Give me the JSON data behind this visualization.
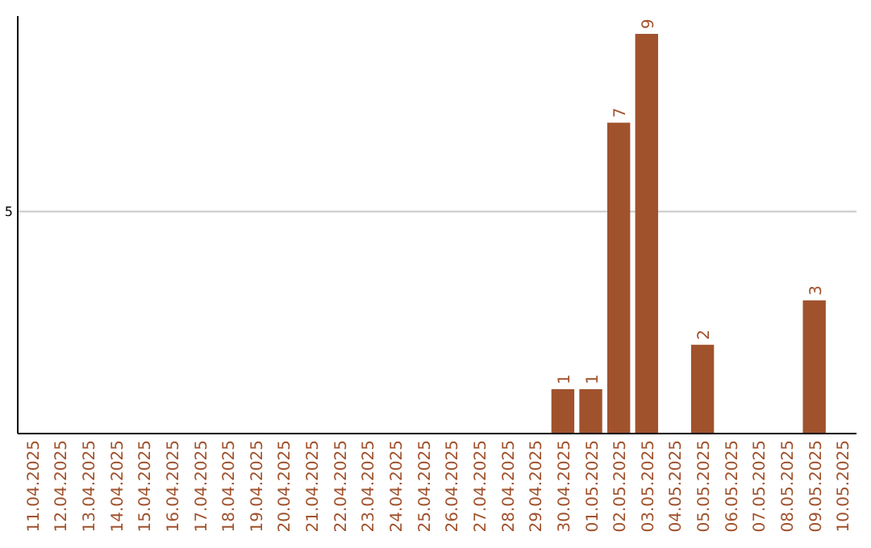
{
  "chart_data": {
    "type": "bar",
    "categories": [
      "11.04.2025",
      "12.04.2025",
      "13.04.2025",
      "14.04.2025",
      "15.04.2025",
      "16.04.2025",
      "17.04.2025",
      "18.04.2025",
      "19.04.2025",
      "20.04.2025",
      "21.04.2025",
      "22.04.2025",
      "23.04.2025",
      "24.04.2025",
      "25.04.2025",
      "26.04.2025",
      "27.04.2025",
      "28.04.2025",
      "29.04.2025",
      "30.04.2025",
      "01.05.2025",
      "02.05.2025",
      "03.05.2025",
      "04.05.2025",
      "05.05.2025",
      "06.05.2025",
      "07.05.2025",
      "08.05.2025",
      "09.05.2025",
      "10.05.2025"
    ],
    "values": [
      null,
      null,
      null,
      null,
      null,
      null,
      null,
      null,
      null,
      null,
      null,
      null,
      null,
      null,
      null,
      null,
      null,
      null,
      null,
      1,
      1,
      7,
      9,
      null,
      2,
      null,
      null,
      null,
      3,
      null
    ],
    "data_labels": true,
    "color": "#a0522d",
    "ylim": [
      0,
      9.4
    ],
    "yticks": [
      {
        "value": 0,
        "label": null
      },
      5
    ],
    "grid": "y",
    "legend": false
  }
}
